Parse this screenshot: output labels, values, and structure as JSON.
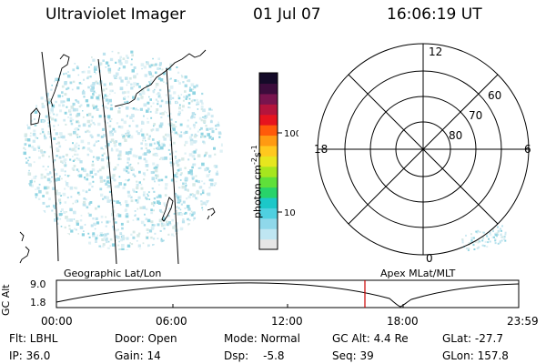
{
  "header": {
    "title": "Ultraviolet Imager",
    "date": "01 Jul 07",
    "time": "16:06:19 UT"
  },
  "colorbar": {
    "unit_label": "photon cm",
    "unit_sup1": "-2",
    "unit_mid": "s",
    "unit_sup2": "-1",
    "tick_labels": [
      "100",
      "10"
    ],
    "scale": "log",
    "colors": [
      "#e6e6e6",
      "#bfe6f2",
      "#8fd8ea",
      "#4fd0e0",
      "#1cc8c8",
      "#28d36a",
      "#5fe03a",
      "#a6e61e",
      "#e6e61e",
      "#ffc81e",
      "#ff9a12",
      "#ff5a0a",
      "#e6141e",
      "#b4143c",
      "#78144e",
      "#3c0c3c",
      "#140a28"
    ]
  },
  "polar_plot": {
    "mlt_labels": {
      "top": "12",
      "left": "18",
      "right": "6",
      "bottom": "0"
    },
    "lat_labels": [
      "60",
      "70",
      "80"
    ]
  },
  "timeline": {
    "axis_label": "GC Alt",
    "ymax": "9.0",
    "ymin": "1.8",
    "left_title": "Geographic Lat/Lon",
    "right_title": "Apex MLat/MLT",
    "x_ticks": [
      "00:00",
      "06:00",
      "12:00",
      "18:00",
      "23:59"
    ],
    "marker_color": "#cc0000"
  },
  "info": {
    "flt": "Flt: LBHL",
    "ip": "IP: 36.0",
    "door": "Door: Open",
    "gain": "Gain: 14",
    "mode": "Mode: Normal",
    "dsp_label": "Dsp:",
    "dsp_value": "-5.8",
    "gc_alt": "GC Alt: 4.4 Re",
    "seq": "Seq: 39",
    "glat": "GLat: -27.7",
    "glon": "GLon: 157.8"
  }
}
